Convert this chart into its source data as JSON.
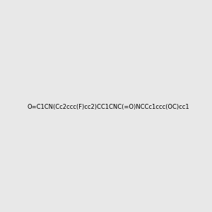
{
  "smiles": "O=C1CN(Cc2ccc(F)cc2)CC1CNC(=O)NCCc1ccc(OC)cc1",
  "image_size": 300,
  "background_color": "#e8e8e8",
  "title": ""
}
